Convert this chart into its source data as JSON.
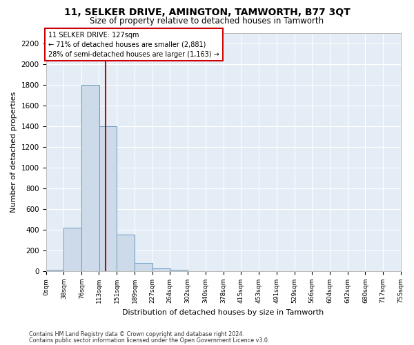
{
  "title": "11, SELKER DRIVE, AMINGTON, TAMWORTH, B77 3QT",
  "subtitle": "Size of property relative to detached houses in Tamworth",
  "xlabel": "Distribution of detached houses by size in Tamworth",
  "ylabel": "Number of detached properties",
  "bar_color": "#ccdaea",
  "bar_edge_color": "#6a9abf",
  "background_color": "#e4ecf5",
  "grid_color": "#ffffff",
  "annotation_line_color": "#cc0000",
  "annotation_box_color": "#cc0000",
  "annotation_line1": "11 SELKER DRIVE: 127sqm",
  "annotation_line2": "← 71% of detached houses are smaller (2,881)",
  "annotation_line3": "28% of semi-detached houses are larger (1,163) →",
  "property_sqm": 127,
  "bin_edges": [
    0,
    38,
    76,
    113,
    151,
    189,
    227,
    264,
    302,
    340,
    378,
    415,
    453,
    491,
    529,
    566,
    604,
    642,
    680,
    717,
    755
  ],
  "bar_heights": [
    15,
    420,
    1800,
    1400,
    350,
    80,
    30,
    15,
    0,
    0,
    0,
    0,
    0,
    0,
    0,
    0,
    0,
    0,
    0,
    0
  ],
  "tick_labels": [
    "0sqm",
    "38sqm",
    "76sqm",
    "113sqm",
    "151sqm",
    "189sqm",
    "227sqm",
    "264sqm",
    "302sqm",
    "340sqm",
    "378sqm",
    "415sqm",
    "453sqm",
    "491sqm",
    "529sqm",
    "566sqm",
    "604sqm",
    "642sqm",
    "680sqm",
    "717sqm",
    "755sqm"
  ],
  "ylim": [
    0,
    2300
  ],
  "yticks": [
    0,
    200,
    400,
    600,
    800,
    1000,
    1200,
    1400,
    1600,
    1800,
    2000,
    2200
  ],
  "footer_line1": "Contains HM Land Registry data © Crown copyright and database right 2024.",
  "footer_line2": "Contains public sector information licensed under the Open Government Licence v3.0.",
  "fig_width": 6.0,
  "fig_height": 5.0,
  "dpi": 100
}
